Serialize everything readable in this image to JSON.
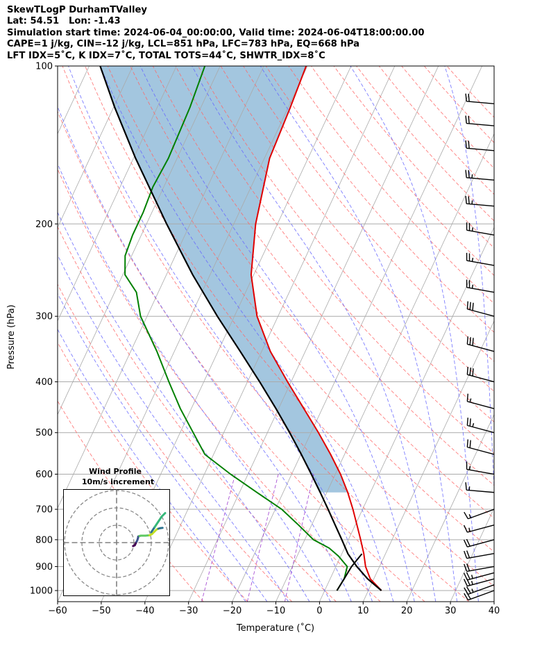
{
  "header": {
    "line1": "SkewTLogP DurhamTValley",
    "line2": "Lat: 54.51   Lon: -1.43",
    "line3": "Simulation start time: 2024-06-04_00:00:00, Valid time: 2024-06-04T18:00:00.00",
    "line4": "CAPE=1 j/kg, CIN=-12 j/kg, LCL=851 hPa, LFC=783 hPa, EQ=668 hPa",
    "line5": "LFT IDX=5˚C, K IDX=7˚C, TOTAL TOTS=44˚C, SHWTR_IDX=8˚C"
  },
  "chart_data": [
    {
      "type": "line",
      "title": "",
      "xlabel": "Temperature (˚C)",
      "ylabel": "Pressure (hPa)",
      "xlim": [
        -60,
        40
      ],
      "ylim": [
        1050,
        100
      ],
      "y_scale": "log",
      "skew": true,
      "grid": true,
      "x_ticks": [
        -60,
        -50,
        -40,
        -30,
        -20,
        -10,
        0,
        10,
        20,
        30,
        40
      ],
      "y_ticks": [
        1000,
        900,
        800,
        700,
        600,
        500,
        400,
        300,
        200,
        100
      ],
      "colors": {
        "temperature": "#e00000",
        "dewpoint": "#008000",
        "parcel": "#000000",
        "cape_fill": "#a3c6df",
        "isotherm": "#aaaaaa",
        "dry_adiabat": "#ff6666",
        "moist_adiabat": "#6666ff",
        "mixing_ratio": "#9933cc"
      },
      "series": [
        {
          "key": "temperature",
          "points": [
            [
              1000,
              13
            ],
            [
              950,
              9.2
            ],
            [
              900,
              6.8
            ],
            [
              850,
              5.0
            ],
            [
              800,
              2.8
            ],
            [
              750,
              0.4
            ],
            [
              700,
              -2.2
            ],
            [
              650,
              -5.2
            ],
            [
              600,
              -8.8
            ],
            [
              550,
              -13.2
            ],
            [
              500,
              -18.3
            ],
            [
              450,
              -24.2
            ],
            [
              400,
              -30.8
            ],
            [
              350,
              -38.0
            ],
            [
              300,
              -44.8
            ],
            [
              250,
              -50.6
            ],
            [
              200,
              -55.0
            ],
            [
              150,
              -58.8
            ],
            [
              120,
              -59.5
            ],
            [
              100,
              -60.3
            ]
          ]
        },
        {
          "key": "dewpoint",
          "points": [
            [
              1000,
              2.8
            ],
            [
              950,
              3.2
            ],
            [
              900,
              2.6
            ],
            [
              860,
              -0.5
            ],
            [
              830,
              -3.5
            ],
            [
              800,
              -8.0
            ],
            [
              750,
              -13.0
            ],
            [
              700,
              -18.5
            ],
            [
              650,
              -26.0
            ],
            [
              600,
              -34.0
            ],
            [
              550,
              -42.0
            ],
            [
              500,
              -47.0
            ],
            [
              450,
              -52.5
            ],
            [
              400,
              -58.0
            ],
            [
              350,
              -64.0
            ],
            [
              300,
              -71.5
            ],
            [
              270,
              -75.0
            ],
            [
              250,
              -79.5
            ],
            [
              230,
              -81.5
            ],
            [
              210,
              -82.0
            ],
            [
              190,
              -82.0
            ],
            [
              170,
              -82.5
            ],
            [
              150,
              -82.0
            ],
            [
              120,
              -82.5
            ],
            [
              100,
              -83.5
            ]
          ]
        },
        {
          "key": "parcel",
          "points": [
            [
              1000,
              13
            ],
            [
              950,
              8.6
            ],
            [
              900,
              4.8
            ],
            [
              851,
              1.4
            ],
            [
              800,
              -1.5
            ],
            [
              750,
              -4.6
            ],
            [
              700,
              -7.9
            ],
            [
              650,
              -11.5
            ],
            [
              600,
              -15.5
            ],
            [
              550,
              -19.9
            ],
            [
              500,
              -24.9
            ],
            [
              450,
              -30.6
            ],
            [
              400,
              -37.2
            ],
            [
              350,
              -44.9
            ],
            [
              300,
              -53.9
            ],
            [
              250,
              -64.0
            ],
            [
              200,
              -75.4
            ],
            [
              150,
              -89.5
            ],
            [
              120,
              -99.7
            ],
            [
              100,
              -107.5
            ]
          ]
        },
        {
          "key": "dewpoint_near_surface",
          "points": [
            [
              1000,
              2.8
            ],
            [
              950,
              3.2
            ],
            [
              900,
              3.6
            ],
            [
              851,
              4.6
            ]
          ]
        }
      ],
      "wind_barbs": [
        {
          "p": 1000,
          "dir": 290,
          "spd": 20
        },
        {
          "p": 975,
          "dir": 290,
          "spd": 25
        },
        {
          "p": 950,
          "dir": 285,
          "spd": 25
        },
        {
          "p": 925,
          "dir": 285,
          "spd": 25
        },
        {
          "p": 900,
          "dir": 280,
          "spd": 20
        },
        {
          "p": 850,
          "dir": 280,
          "spd": 20
        },
        {
          "p": 800,
          "dir": 285,
          "spd": 20
        },
        {
          "p": 750,
          "dir": 285,
          "spd": 15
        },
        {
          "p": 700,
          "dir": 290,
          "spd": 15
        },
        {
          "p": 650,
          "dir": 265,
          "spd": 15
        },
        {
          "p": 600,
          "dir": 260,
          "spd": 15
        },
        {
          "p": 550,
          "dir": 255,
          "spd": 20
        },
        {
          "p": 500,
          "dir": 255,
          "spd": 25
        },
        {
          "p": 450,
          "dir": 255,
          "spd": 15
        },
        {
          "p": 400,
          "dir": 255,
          "spd": 30
        },
        {
          "p": 350,
          "dir": 255,
          "spd": 30
        },
        {
          "p": 300,
          "dir": 255,
          "spd": 30
        },
        {
          "p": 270,
          "dir": 260,
          "spd": 25
        },
        {
          "p": 240,
          "dir": 260,
          "spd": 25
        },
        {
          "p": 210,
          "dir": 260,
          "spd": 25
        },
        {
          "p": 185,
          "dir": 265,
          "spd": 25
        },
        {
          "p": 165,
          "dir": 265,
          "spd": 25
        },
        {
          "p": 145,
          "dir": 265,
          "spd": 20
        },
        {
          "p": 130,
          "dir": 265,
          "spd": 20
        },
        {
          "p": 118,
          "dir": 265,
          "spd": 20
        }
      ]
    },
    {
      "type": "line",
      "title": "Wind Profile",
      "subtitle": "10m/s increment",
      "ring_spacing": 10,
      "points_uv": [
        [
          9.5,
          2.0
        ],
        [
          10.5,
          1.5
        ],
        [
          11.0,
          0.5
        ],
        [
          11.5,
          -0.5
        ],
        [
          12.0,
          -1.5
        ],
        [
          12.3,
          -2.5
        ],
        [
          12.5,
          -3.5
        ],
        [
          13.2,
          -3.8
        ],
        [
          14.0,
          -4.0
        ],
        [
          16.5,
          -4.0
        ],
        [
          19.0,
          -4.2
        ],
        [
          20.5,
          -5.0
        ],
        [
          22.0,
          -6.5
        ],
        [
          23.0,
          -7.5
        ],
        [
          24.0,
          -8.0
        ],
        [
          25.0,
          -8.3
        ],
        [
          26.5,
          -8.5
        ],
        [
          20.0,
          -6.0
        ],
        [
          22.0,
          -9.0
        ],
        [
          24.0,
          -12.0
        ],
        [
          26.0,
          -15.0
        ],
        [
          28.0,
          -17.0
        ]
      ],
      "segment_colors": [
        "#440154",
        "#3b518b",
        "#5ec962",
        "#c2df23",
        "#2c728e",
        "#35b779"
      ]
    }
  ]
}
